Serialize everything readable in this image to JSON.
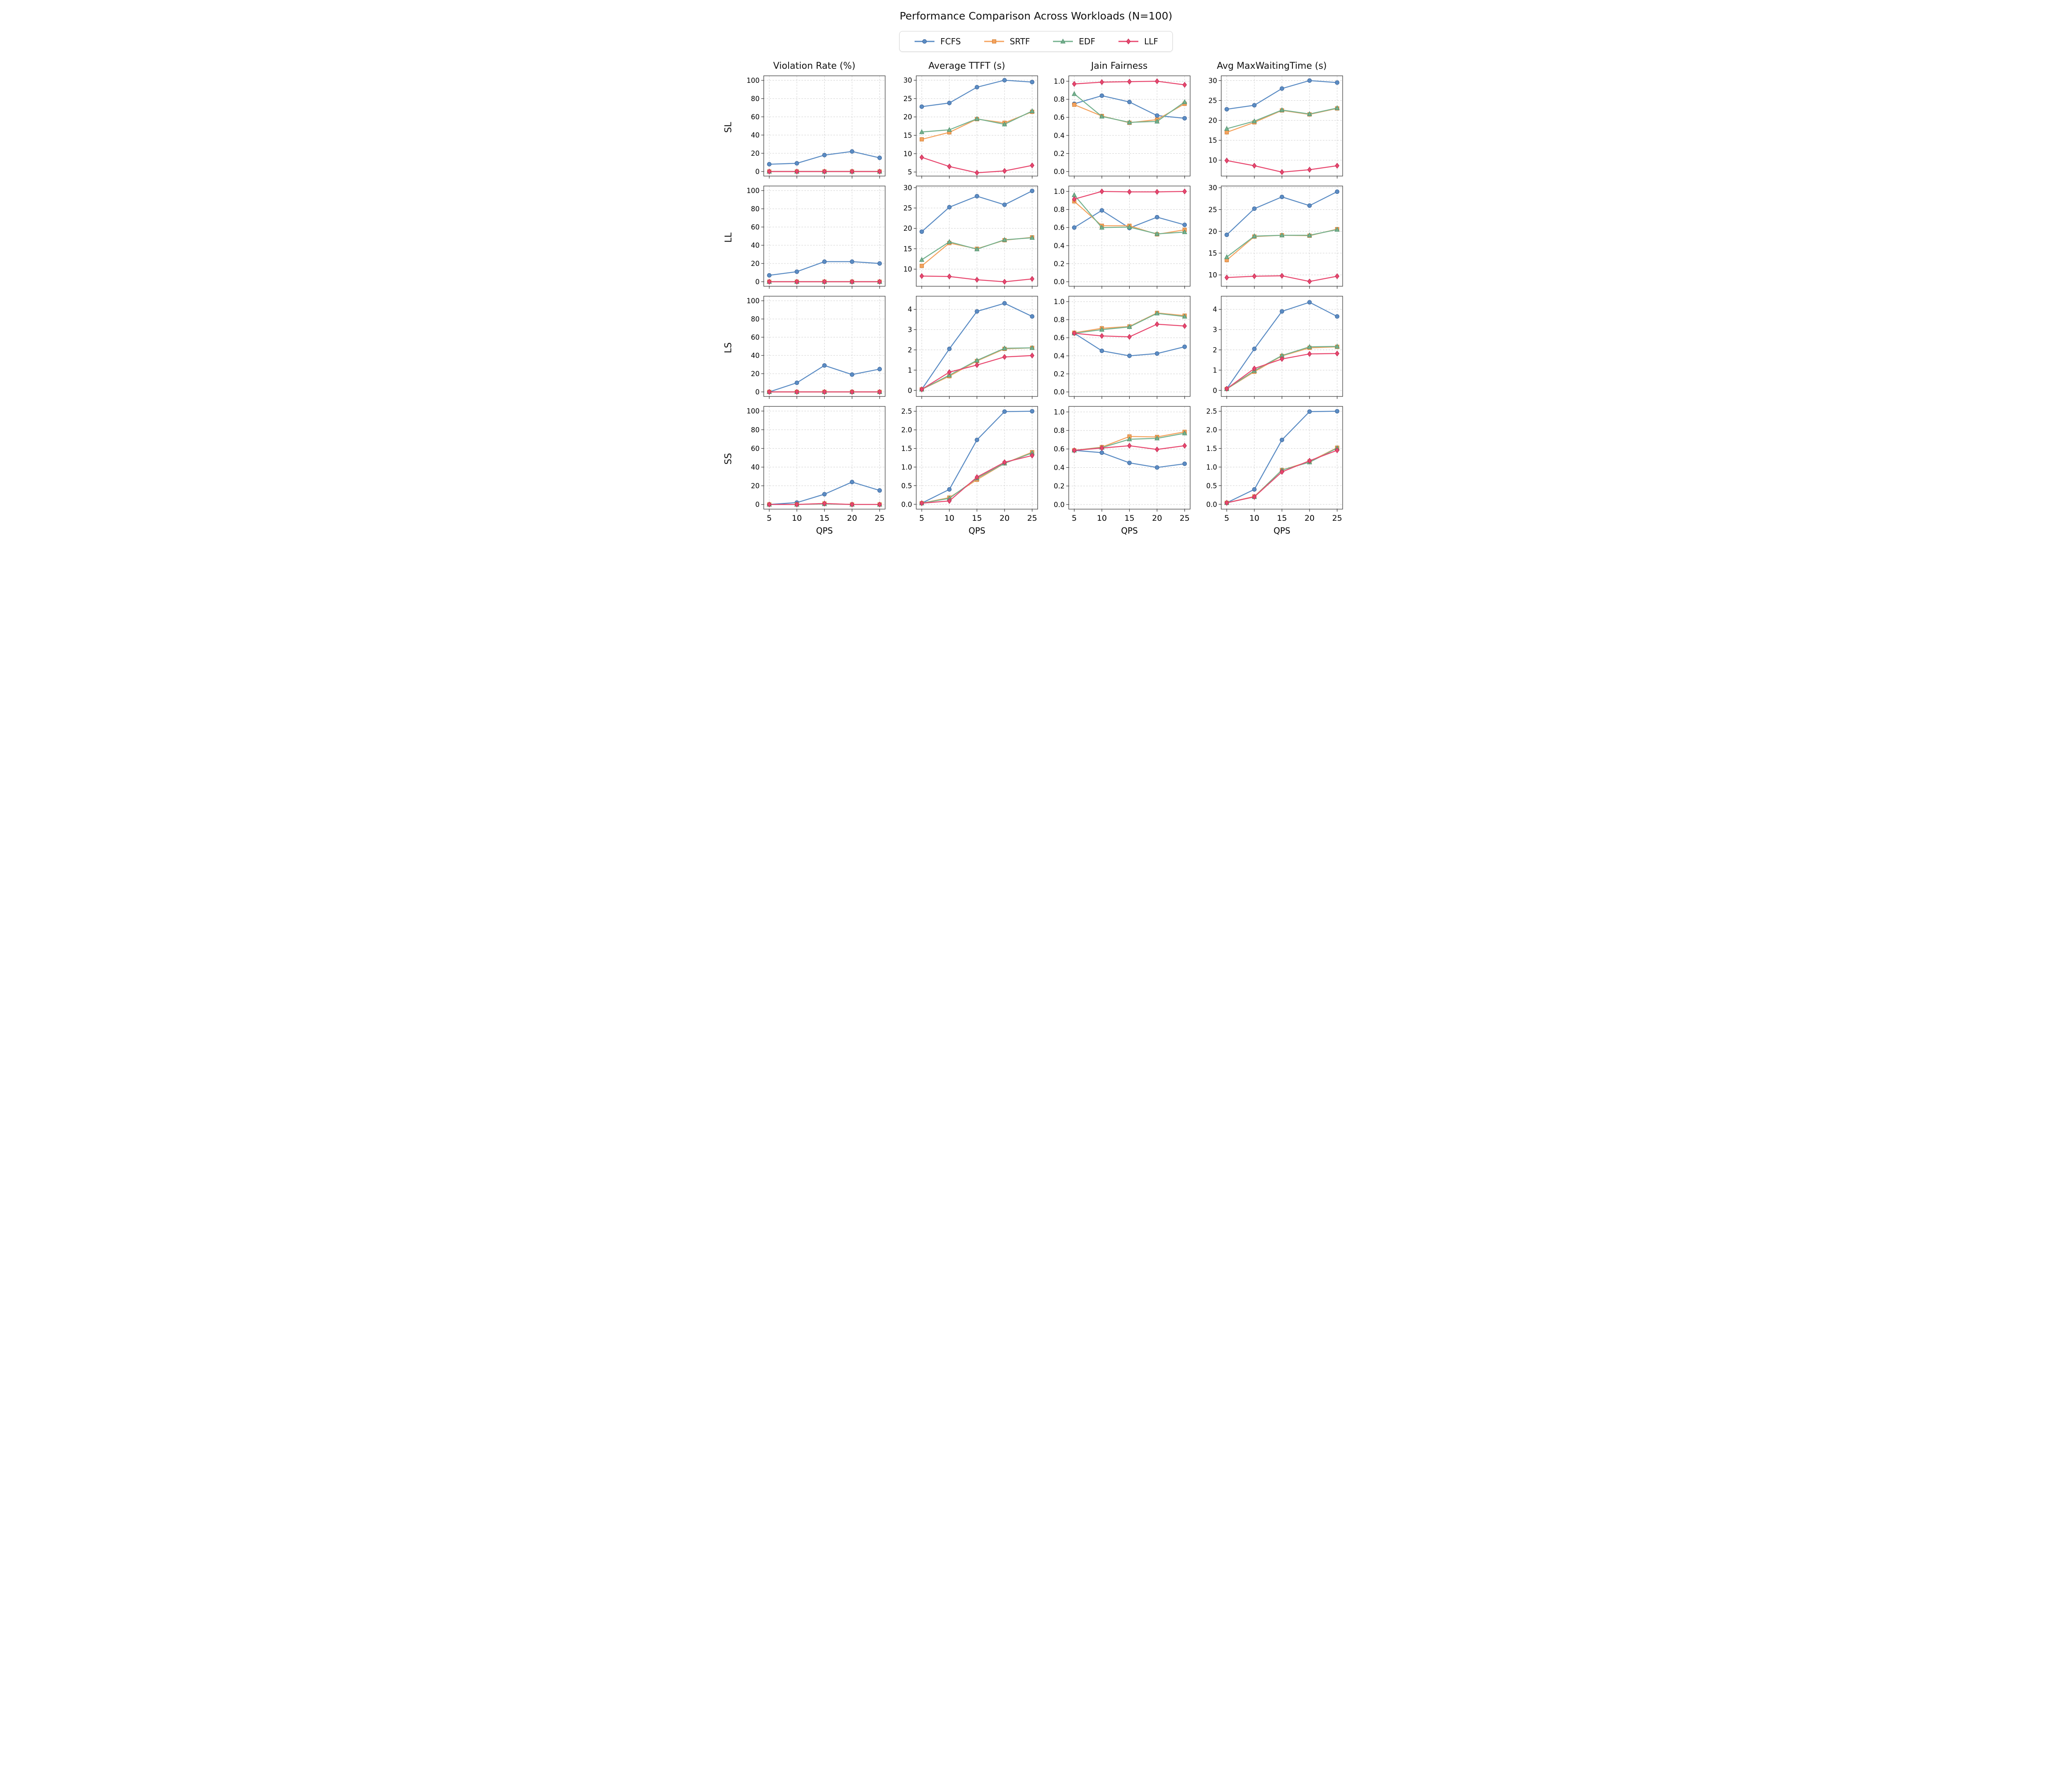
{
  "title": "Performance Comparison Across Workloads (N=100)",
  "legend": [
    {
      "label": "FCFS",
      "marker": "circle",
      "color": "#5b8cc4",
      "edge": "#41699c"
    },
    {
      "label": "SRTF",
      "marker": "square",
      "color": "#f5a35e",
      "edge": "#cf7c2f"
    },
    {
      "label": "EDF",
      "marker": "triangle",
      "color": "#74b18e",
      "edge": "#4f8e6b"
    },
    {
      "label": "LLF",
      "marker": "diamond",
      "color": "#e8486f",
      "edge": "#c02a52"
    }
  ],
  "rows": [
    "SL",
    "LL",
    "LS",
    "SS"
  ],
  "cols": [
    "Violation Rate (%)",
    "Average TTFT (s)",
    "Jain Fairness",
    "Avg MaxWaitingTime (s)"
  ],
  "x_axis": {
    "label": "QPS",
    "values": [
      5,
      10,
      15,
      20,
      25
    ],
    "tick_labels": [
      "5",
      "10",
      "15",
      "20",
      "25"
    ],
    "xlim": [
      4,
      26
    ]
  },
  "style": {
    "grid_color": "#d0d0d0",
    "frame_color": "#2b2b2b",
    "background": "#ffffff"
  },
  "chart_data": [
    {
      "type": "line",
      "row": "SL",
      "col": "Violation Rate (%)",
      "ylim": [
        -5,
        105
      ],
      "yticks": [
        0,
        20,
        40,
        60,
        80,
        100
      ],
      "ytick_labels": [
        "0",
        "20",
        "40",
        "60",
        "80",
        "100"
      ],
      "series": [
        {
          "name": "FCFS",
          "values": [
            8,
            9,
            18,
            22,
            15
          ]
        },
        {
          "name": "SRTF",
          "values": [
            0,
            0,
            0,
            0,
            0
          ]
        },
        {
          "name": "EDF",
          "values": [
            0,
            0,
            0,
            0,
            0
          ]
        },
        {
          "name": "LLF",
          "values": [
            0,
            0,
            0,
            0,
            0
          ]
        }
      ]
    },
    {
      "type": "line",
      "row": "SL",
      "col": "Average TTFT (s)",
      "ylim": [
        3.9,
        31.2
      ],
      "yticks": [
        5,
        10,
        15,
        20,
        25,
        30
      ],
      "ytick_labels": [
        "5",
        "10",
        "15",
        "20",
        "25",
        "30"
      ],
      "series": [
        {
          "name": "FCFS",
          "values": [
            22.8,
            23.8,
            28.1,
            30.0,
            29.5
          ]
        },
        {
          "name": "SRTF",
          "values": [
            13.9,
            15.8,
            19.4,
            18.4,
            21.4
          ]
        },
        {
          "name": "EDF",
          "values": [
            15.9,
            16.5,
            19.5,
            18.0,
            21.6
          ]
        },
        {
          "name": "LLF",
          "values": [
            9.0,
            6.5,
            4.8,
            5.3,
            6.8
          ]
        }
      ]
    },
    {
      "type": "line",
      "row": "SL",
      "col": "Jain Fairness",
      "ylim": [
        -0.05,
        1.06
      ],
      "yticks": [
        0.0,
        0.2,
        0.4,
        0.6,
        0.8,
        1.0
      ],
      "ytick_labels": [
        "0.0",
        "0.2",
        "0.4",
        "0.6",
        "0.8",
        "1.0"
      ],
      "series": [
        {
          "name": "FCFS",
          "values": [
            0.75,
            0.84,
            0.77,
            0.62,
            0.59
          ]
        },
        {
          "name": "SRTF",
          "values": [
            0.74,
            0.615,
            0.54,
            0.575,
            0.75
          ]
        },
        {
          "name": "EDF",
          "values": [
            0.86,
            0.61,
            0.545,
            0.555,
            0.77
          ]
        },
        {
          "name": "LLF",
          "values": [
            0.97,
            0.99,
            0.995,
            1.0,
            0.96
          ]
        }
      ]
    },
    {
      "type": "line",
      "row": "SL",
      "col": "Avg MaxWaitingTime (s)",
      "ylim": [
        6.0,
        31.2
      ],
      "yticks": [
        10,
        15,
        20,
        25,
        30
      ],
      "ytick_labels": [
        "10",
        "15",
        "20",
        "25",
        "30"
      ],
      "series": [
        {
          "name": "FCFS",
          "values": [
            22.8,
            23.8,
            28.0,
            30.0,
            29.5
          ]
        },
        {
          "name": "SRTF",
          "values": [
            17.0,
            19.5,
            22.5,
            21.5,
            23.0
          ]
        },
        {
          "name": "EDF",
          "values": [
            17.9,
            19.8,
            22.6,
            21.6,
            23.1
          ]
        },
        {
          "name": "LLF",
          "values": [
            9.9,
            8.6,
            7.0,
            7.6,
            8.6
          ]
        }
      ]
    },
    {
      "type": "line",
      "row": "LL",
      "col": "Violation Rate (%)",
      "ylim": [
        -5,
        105
      ],
      "yticks": [
        0,
        20,
        40,
        60,
        80,
        100
      ],
      "ytick_labels": [
        "0",
        "20",
        "40",
        "60",
        "80",
        "100"
      ],
      "series": [
        {
          "name": "FCFS",
          "values": [
            7,
            11,
            22,
            22,
            20
          ]
        },
        {
          "name": "SRTF",
          "values": [
            0,
            0,
            0,
            0,
            0
          ]
        },
        {
          "name": "EDF",
          "values": [
            0,
            0,
            0,
            0,
            0
          ]
        },
        {
          "name": "LLF",
          "values": [
            0,
            0,
            0,
            0,
            0
          ]
        }
      ]
    },
    {
      "type": "line",
      "row": "LL",
      "col": "Average TTFT (s)",
      "ylim": [
        5.8,
        30.4
      ],
      "yticks": [
        10,
        15,
        20,
        25,
        30
      ],
      "ytick_labels": [
        "10",
        "15",
        "20",
        "25",
        "30"
      ],
      "series": [
        {
          "name": "FCFS",
          "values": [
            19.2,
            25.2,
            27.9,
            25.8,
            29.2
          ]
        },
        {
          "name": "SRTF",
          "values": [
            10.8,
            16.4,
            15.0,
            17.1,
            17.8
          ]
        },
        {
          "name": "EDF",
          "values": [
            12.3,
            16.7,
            14.9,
            17.2,
            17.7
          ]
        },
        {
          "name": "LLF",
          "values": [
            8.3,
            8.2,
            7.4,
            6.9,
            7.6
          ]
        }
      ]
    },
    {
      "type": "line",
      "row": "LL",
      "col": "Jain Fairness",
      "ylim": [
        -0.05,
        1.06
      ],
      "yticks": [
        0.0,
        0.2,
        0.4,
        0.6,
        0.8,
        1.0
      ],
      "ytick_labels": [
        "0.0",
        "0.2",
        "0.4",
        "0.6",
        "0.8",
        "1.0"
      ],
      "series": [
        {
          "name": "FCFS",
          "values": [
            0.6,
            0.79,
            0.595,
            0.715,
            0.63
          ]
        },
        {
          "name": "SRTF",
          "values": [
            0.89,
            0.62,
            0.62,
            0.525,
            0.575
          ]
        },
        {
          "name": "EDF",
          "values": [
            0.96,
            0.6,
            0.605,
            0.53,
            0.55
          ]
        },
        {
          "name": "LLF",
          "values": [
            0.915,
            1.0,
            0.995,
            0.995,
            1.0
          ]
        }
      ]
    },
    {
      "type": "line",
      "row": "LL",
      "col": "Avg MaxWaitingTime (s)",
      "ylim": [
        7.4,
        30.4
      ],
      "yticks": [
        10,
        15,
        20,
        25,
        30
      ],
      "ytick_labels": [
        "10",
        "15",
        "20",
        "25",
        "30"
      ],
      "series": [
        {
          "name": "FCFS",
          "values": [
            19.2,
            25.2,
            27.9,
            25.9,
            29.1
          ]
        },
        {
          "name": "SRTF",
          "values": [
            13.4,
            18.8,
            19.1,
            19.0,
            20.5
          ]
        },
        {
          "name": "EDF",
          "values": [
            14.1,
            18.9,
            19.1,
            19.1,
            20.4
          ]
        },
        {
          "name": "LLF",
          "values": [
            9.4,
            9.7,
            9.8,
            8.5,
            9.7
          ]
        }
      ]
    },
    {
      "type": "line",
      "row": "LS",
      "col": "Violation Rate (%)",
      "ylim": [
        -5,
        105
      ],
      "yticks": [
        0,
        20,
        40,
        60,
        80,
        100
      ],
      "ytick_labels": [
        "0",
        "20",
        "40",
        "60",
        "80",
        "100"
      ],
      "series": [
        {
          "name": "FCFS",
          "values": [
            0,
            10,
            29,
            19,
            25
          ]
        },
        {
          "name": "SRTF",
          "values": [
            0,
            0,
            0,
            0,
            0
          ]
        },
        {
          "name": "EDF",
          "values": [
            0,
            0,
            0,
            0,
            0
          ]
        },
        {
          "name": "LLF",
          "values": [
            0,
            0,
            0,
            0,
            0
          ]
        }
      ]
    },
    {
      "type": "line",
      "row": "LS",
      "col": "Average TTFT (s)",
      "ylim": [
        -0.3,
        4.65
      ],
      "yticks": [
        0,
        1,
        2,
        3,
        4
      ],
      "ytick_labels": [
        "0",
        "1",
        "2",
        "3",
        "4"
      ],
      "series": [
        {
          "name": "FCFS",
          "values": [
            0.05,
            2.05,
            3.9,
            4.3,
            3.65
          ]
        },
        {
          "name": "SRTF",
          "values": [
            0.05,
            0.7,
            1.45,
            2.05,
            2.1
          ]
        },
        {
          "name": "EDF",
          "values": [
            0.05,
            0.75,
            1.48,
            2.08,
            2.1
          ]
        },
        {
          "name": "LLF",
          "values": [
            0.05,
            0.9,
            1.25,
            1.65,
            1.72
          ]
        }
      ]
    },
    {
      "type": "line",
      "row": "LS",
      "col": "Jain Fairness",
      "ylim": [
        -0.05,
        1.06
      ],
      "yticks": [
        0.0,
        0.2,
        0.4,
        0.6,
        0.8,
        1.0
      ],
      "ytick_labels": [
        "0.0",
        "0.2",
        "0.4",
        "0.6",
        "0.8",
        "1.0"
      ],
      "series": [
        {
          "name": "FCFS",
          "values": [
            0.65,
            0.455,
            0.4,
            0.425,
            0.5
          ]
        },
        {
          "name": "SRTF",
          "values": [
            0.655,
            0.705,
            0.725,
            0.875,
            0.845
          ]
        },
        {
          "name": "EDF",
          "values": [
            0.65,
            0.69,
            0.72,
            0.87,
            0.835
          ]
        },
        {
          "name": "LLF",
          "values": [
            0.65,
            0.62,
            0.61,
            0.75,
            0.73
          ]
        }
      ]
    },
    {
      "type": "line",
      "row": "LS",
      "col": "Avg MaxWaitingTime (s)",
      "ylim": [
        -0.3,
        4.65
      ],
      "yticks": [
        0,
        1,
        2,
        3,
        4
      ],
      "ytick_labels": [
        "0",
        "1",
        "2",
        "3",
        "4"
      ],
      "series": [
        {
          "name": "FCFS",
          "values": [
            0.08,
            2.05,
            3.9,
            4.35,
            3.65
          ]
        },
        {
          "name": "SRTF",
          "values": [
            0.07,
            0.92,
            1.7,
            2.1,
            2.15
          ]
        },
        {
          "name": "EDF",
          "values": [
            0.07,
            0.97,
            1.72,
            2.15,
            2.17
          ]
        },
        {
          "name": "LLF",
          "values": [
            0.08,
            1.08,
            1.55,
            1.8,
            1.82
          ]
        }
      ]
    },
    {
      "type": "line",
      "row": "SS",
      "col": "Violation Rate (%)",
      "ylim": [
        -5,
        105
      ],
      "yticks": [
        0,
        20,
        40,
        60,
        80,
        100
      ],
      "ytick_labels": [
        "0",
        "20",
        "40",
        "60",
        "80",
        "100"
      ],
      "series": [
        {
          "name": "FCFS",
          "values": [
            0,
            2,
            11,
            24,
            15
          ]
        },
        {
          "name": "SRTF",
          "values": [
            0,
            0,
            1,
            0,
            0
          ]
        },
        {
          "name": "EDF",
          "values": [
            0,
            0,
            0.5,
            0,
            0
          ]
        },
        {
          "name": "LLF",
          "values": [
            0,
            0,
            1,
            0,
            0
          ]
        }
      ]
    },
    {
      "type": "line",
      "row": "SS",
      "col": "Average TTFT (s)",
      "ylim": [
        -0.13,
        2.63
      ],
      "yticks": [
        0.0,
        0.5,
        1.0,
        1.5,
        2.0,
        2.5
      ],
      "ytick_labels": [
        "0.0",
        "0.5",
        "1.0",
        "1.5",
        "2.0",
        "2.5"
      ],
      "series": [
        {
          "name": "FCFS",
          "values": [
            0.03,
            0.4,
            1.73,
            2.49,
            2.5
          ]
        },
        {
          "name": "SRTF",
          "values": [
            0.03,
            0.18,
            0.66,
            1.1,
            1.4
          ]
        },
        {
          "name": "EDF",
          "values": [
            0.03,
            0.16,
            0.7,
            1.1,
            1.38
          ]
        },
        {
          "name": "LLF",
          "values": [
            0.03,
            0.09,
            0.73,
            1.13,
            1.31
          ]
        }
      ]
    },
    {
      "type": "line",
      "row": "SS",
      "col": "Jain Fairness",
      "ylim": [
        -0.05,
        1.06
      ],
      "yticks": [
        0.0,
        0.2,
        0.4,
        0.6,
        0.8,
        1.0
      ],
      "ytick_labels": [
        "0.0",
        "0.2",
        "0.4",
        "0.6",
        "0.8",
        "1.0"
      ],
      "series": [
        {
          "name": "FCFS",
          "values": [
            0.585,
            0.56,
            0.45,
            0.4,
            0.44
          ]
        },
        {
          "name": "SRTF",
          "values": [
            0.585,
            0.62,
            0.735,
            0.73,
            0.785
          ]
        },
        {
          "name": "EDF",
          "values": [
            0.585,
            0.615,
            0.705,
            0.715,
            0.77
          ]
        },
        {
          "name": "LLF",
          "values": [
            0.585,
            0.61,
            0.635,
            0.595,
            0.635
          ]
        }
      ]
    },
    {
      "type": "line",
      "row": "SS",
      "col": "Avg MaxWaitingTime (s)",
      "ylim": [
        -0.13,
        2.63
      ],
      "yticks": [
        0.0,
        0.5,
        1.0,
        1.5,
        2.0,
        2.5
      ],
      "ytick_labels": [
        "0.0",
        "0.5",
        "1.0",
        "1.5",
        "2.0",
        "2.5"
      ],
      "series": [
        {
          "name": "FCFS",
          "values": [
            0.04,
            0.4,
            1.73,
            2.49,
            2.5
          ]
        },
        {
          "name": "SRTF",
          "values": [
            0.04,
            0.21,
            0.92,
            1.15,
            1.52
          ]
        },
        {
          "name": "EDF",
          "values": [
            0.04,
            0.2,
            0.92,
            1.13,
            1.51
          ]
        },
        {
          "name": "LLF",
          "values": [
            0.04,
            0.2,
            0.87,
            1.17,
            1.45
          ]
        }
      ]
    }
  ]
}
